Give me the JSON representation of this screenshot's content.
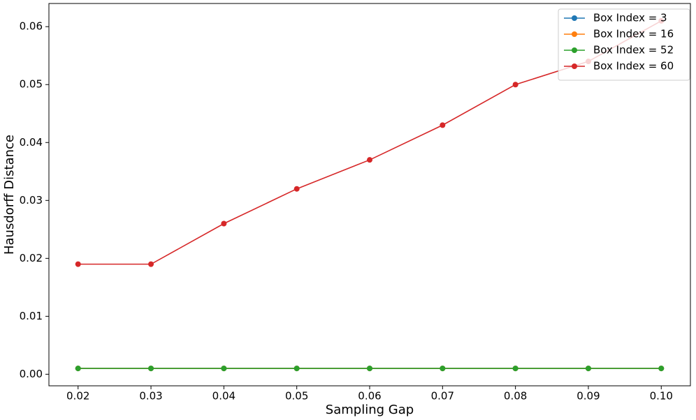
{
  "chart_data": {
    "type": "line",
    "xlabel": "Sampling Gap",
    "ylabel": "Hausdorff Distance",
    "x": [
      0.02,
      0.03,
      0.04,
      0.05,
      0.06,
      0.07,
      0.08,
      0.09,
      0.1
    ],
    "series": [
      {
        "name": "Box Index = 3",
        "color": "#1f77b4",
        "values": [
          0.001,
          0.001,
          0.001,
          0.001,
          0.001,
          0.001,
          0.001,
          0.001,
          0.001
        ]
      },
      {
        "name": "Box Index = 16",
        "color": "#ff7f0e",
        "values": [
          0.001,
          0.001,
          0.001,
          0.001,
          0.001,
          0.001,
          0.001,
          0.001,
          0.001
        ]
      },
      {
        "name": "Box Index = 52",
        "color": "#2ca02c",
        "values": [
          0.001,
          0.001,
          0.001,
          0.001,
          0.001,
          0.001,
          0.001,
          0.001,
          0.001
        ]
      },
      {
        "name": "Box Index = 60",
        "color": "#d62728",
        "values": [
          0.019,
          0.019,
          0.026,
          0.032,
          0.037,
          0.043,
          0.05,
          0.054,
          0.061
        ]
      }
    ],
    "xlim": [
      0.016,
      0.104
    ],
    "xticks": [
      0.02,
      0.03,
      0.04,
      0.05,
      0.06,
      0.07,
      0.08,
      0.09,
      {
        "value": 0.1,
        "label": "0.10"
      }
    ],
    "ylim": [
      -0.002,
      0.064
    ],
    "yticks": [
      {
        "value": 0,
        "label": "0.00"
      },
      0.01,
      0.02,
      0.03,
      0.04,
      0.05,
      0.06
    ],
    "legend": "upper right",
    "grid": false
  }
}
